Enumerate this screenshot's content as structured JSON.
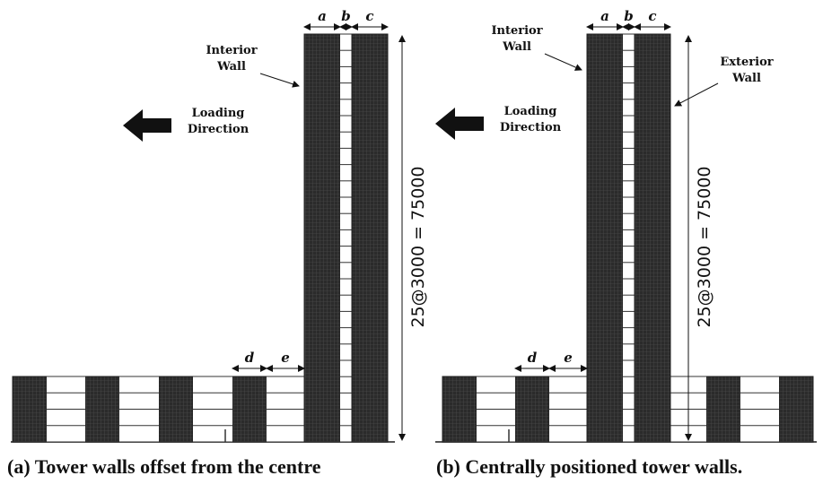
{
  "panels": [
    {
      "id": "a",
      "caption": "(a) Tower walls offset from the centre",
      "dims": {
        "a": "a",
        "b": "b",
        "c": "c",
        "d": "d",
        "e": "e"
      },
      "height_label": "25@3000 = 75000",
      "loading_label": [
        "Loading",
        "Direction"
      ],
      "interior_wall_label": [
        "Interior",
        "Wall"
      ]
    },
    {
      "id": "b",
      "caption": "(b) Centrally positioned tower walls.",
      "dims": {
        "a": "a",
        "b": "b",
        "c": "c",
        "d": "d",
        "e": "e"
      },
      "height_label": "25@3000 = 75000",
      "loading_label": [
        "Loading",
        "Direction"
      ],
      "interior_wall_label": [
        "Interior",
        "Wall"
      ],
      "exterior_wall_label": [
        "Exterior",
        "Wall"
      ]
    }
  ],
  "structure": {
    "tower_storeys": 25,
    "storey_height_mm": 3000,
    "total_height_mm": 75000,
    "podium_storeys": 4
  },
  "colors": {
    "wall": "#2b2b2b",
    "wall_grid": "#5a5a5a",
    "line": "#111111",
    "background": "#ffffff"
  }
}
